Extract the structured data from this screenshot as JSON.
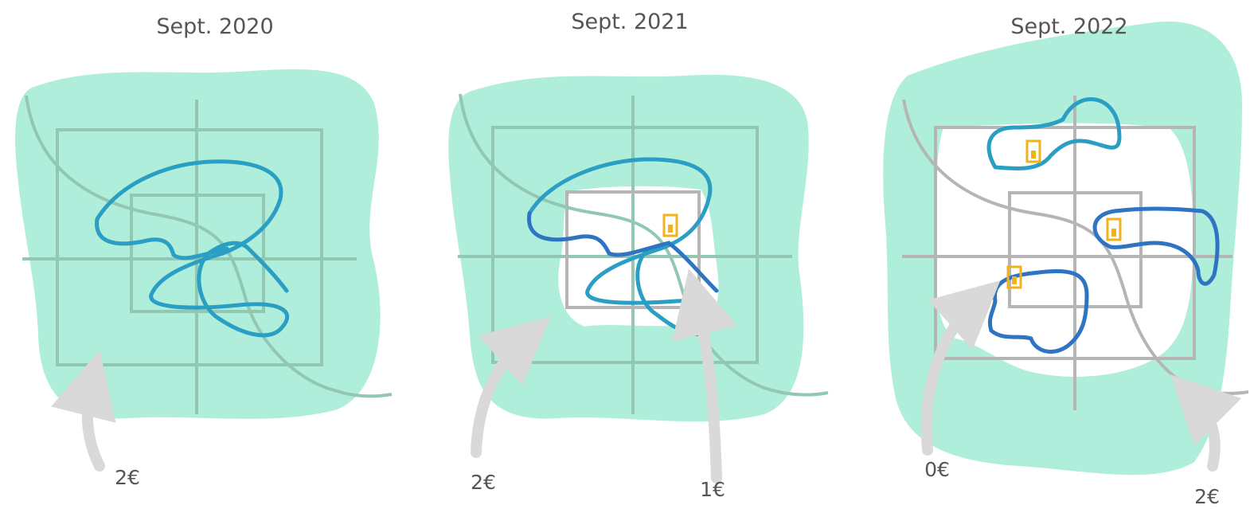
{
  "colors": {
    "zone": "#aeeeda",
    "grid_in_zone": "#92c7b2",
    "grid_outside": "#b5b5b5",
    "route_light": "#2b9fc3",
    "route_dark": "#2e74c2",
    "arrow": "#d9d9d9",
    "pass_icon": "#f2b21b",
    "text": "#555555"
  },
  "panels": [
    {
      "title": "Sept. 2020",
      "prices": [
        {
          "label": "2€"
        }
      ]
    },
    {
      "title": "Sept. 2021",
      "prices": [
        {
          "label": "2€"
        },
        {
          "label": "1€"
        }
      ]
    },
    {
      "title": "Sept. 2022",
      "prices": [
        {
          "label": "0€"
        },
        {
          "label": "2€"
        }
      ]
    }
  ]
}
